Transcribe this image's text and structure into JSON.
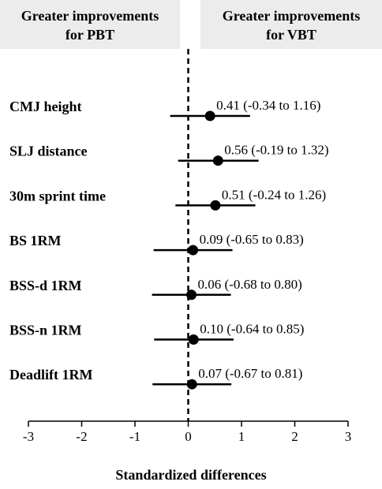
{
  "chart_data": {
    "type": "forest",
    "xlabel": "Standardized differences",
    "xlim": [
      -3,
      3
    ],
    "xticks": [
      "-3",
      "-2",
      "-1",
      "0",
      "1",
      "2",
      "3"
    ],
    "reference_line_x": 0,
    "headers": {
      "left": [
        "Greater improvements",
        "for PBT"
      ],
      "right": [
        "Greater improvements",
        "for VBT"
      ]
    },
    "rows": [
      {
        "label": "CMJ height",
        "estimate": 0.41,
        "lower": -0.34,
        "upper": 1.16,
        "text": "0.41 (-0.34 to 1.16)"
      },
      {
        "label": "SLJ distance",
        "estimate": 0.56,
        "lower": -0.19,
        "upper": 1.32,
        "text": "0.56 (-0.19 to 1.32)"
      },
      {
        "label": "30m sprint time",
        "estimate": 0.51,
        "lower": -0.24,
        "upper": 1.26,
        "text": "0.51 (-0.24 to 1.26)"
      },
      {
        "label": "BS 1RM",
        "estimate": 0.09,
        "lower": -0.65,
        "upper": 0.83,
        "text": "0.09 (-0.65 to 0.83)"
      },
      {
        "label": "BSS-d 1RM",
        "estimate": 0.06,
        "lower": -0.68,
        "upper": 0.8,
        "text": "0.06 (-0.68 to 0.80)"
      },
      {
        "label": "BSS-n 1RM",
        "estimate": 0.1,
        "lower": -0.64,
        "upper": 0.85,
        "text": "0.10 (-0.64 to 0.85)"
      },
      {
        "label": "Deadlift 1RM",
        "estimate": 0.07,
        "lower": -0.67,
        "upper": 0.81,
        "text": "0.07 (-0.67 to 0.81)"
      }
    ],
    "colors": {
      "header_bg": "#ececec",
      "marks": "#000000"
    }
  }
}
